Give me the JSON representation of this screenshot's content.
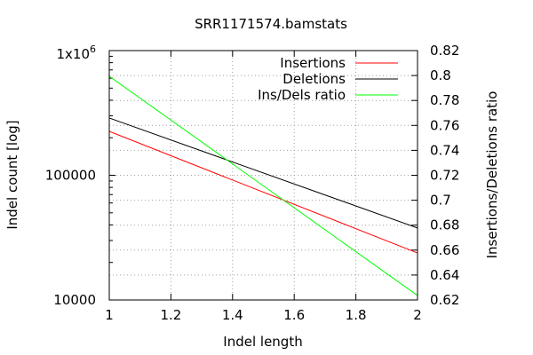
{
  "chart_data": {
    "type": "line",
    "title": "SRR1171574.bamstats",
    "xlabel": "Indel length",
    "ylabel": "Indel count [log]",
    "y2label": "Insertions/Deletions ratio",
    "xlim": [
      1,
      2
    ],
    "ylim": [
      10000,
      1000000
    ],
    "yscale": "log",
    "y2lim": [
      0.62,
      0.82
    ],
    "x_ticks": [
      "1",
      "1.2",
      "1.4",
      "1.6",
      "1.8",
      "2"
    ],
    "y_ticks": [
      "10000",
      "100000"
    ],
    "y_top_tick": {
      "base": "1x10",
      "exp": "6"
    },
    "y2_ticks": [
      "0.62",
      "0.64",
      "0.66",
      "0.68",
      "0.7",
      "0.72",
      "0.74",
      "0.76",
      "0.78",
      "0.8",
      "0.82"
    ],
    "grid": true,
    "legend_position": "top-right",
    "series": [
      {
        "name": "Insertions",
        "axis": "y",
        "color": "#ff0000",
        "x": [
          1,
          2
        ],
        "y": [
          225000,
          23800
        ]
      },
      {
        "name": "Deletions",
        "axis": "y",
        "color": "#000000",
        "x": [
          1,
          2
        ],
        "y": [
          288000,
          37800
        ]
      },
      {
        "name": "Ins/Dels ratio",
        "axis": "y2",
        "color": "#00ff00",
        "x": [
          1,
          2
        ],
        "y": [
          0.7994,
          0.6236
        ]
      }
    ]
  }
}
